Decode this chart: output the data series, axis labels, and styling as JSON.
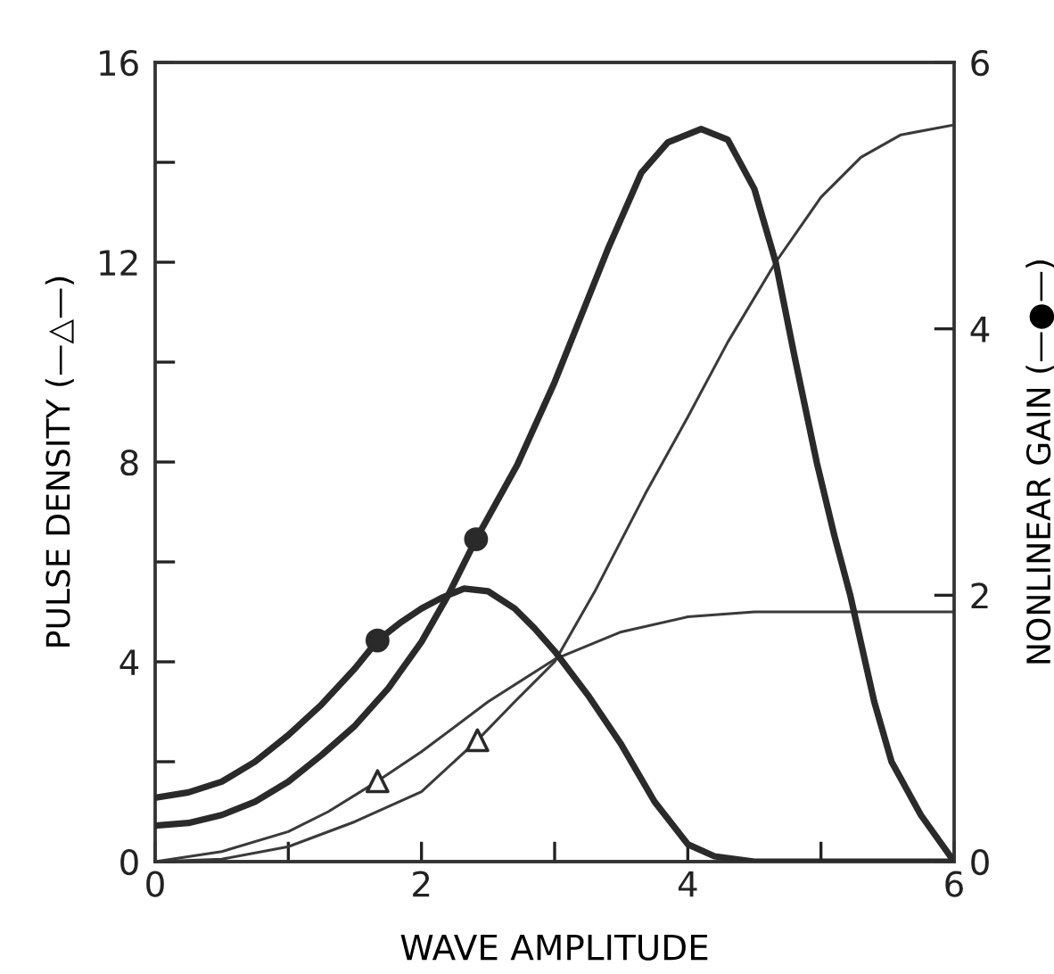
{
  "chart_data": {
    "type": "line",
    "xlabel": "WAVE AMPLITUDE",
    "ylabel": "PULSE DENSITY (—△—)",
    "y2label": "NONLINEAR GAIN (—●—)",
    "series": [
      {
        "axis": "y",
        "color": "#3a3a3a",
        "marker": "none",
        "x": [
          0,
          0.5,
          1,
          1.3,
          1.67,
          2,
          2.5,
          3,
          3.5,
          4,
          4.5,
          5,
          5.5,
          6
        ],
        "values": [
          0,
          0.2,
          0.6,
          1.0,
          1.61,
          2.2,
          3.2,
          4.05,
          4.6,
          4.9,
          5.0,
          5.0,
          5.0,
          5.0
        ]
      },
      {
        "axis": "y",
        "color": "#3a3a3a",
        "marker": "none",
        "x": [
          0,
          0.5,
          1,
          1.5,
          2,
          2.42,
          2.7,
          3,
          3.3,
          3.68,
          4,
          4.3,
          4.66,
          5,
          5.3,
          5.6,
          6
        ],
        "values": [
          0,
          0.05,
          0.3,
          0.8,
          1.4,
          2.43,
          3.2,
          4.0,
          5.4,
          7.36,
          8.9,
          10.4,
          12.0,
          13.3,
          14.1,
          14.55,
          14.75
        ]
      },
      {
        "axis": "y2",
        "color": "#2a2a2a",
        "marker": "none",
        "x": [
          0,
          0.25,
          0.5,
          0.75,
          1,
          1.25,
          1.5,
          1.67,
          1.85,
          2,
          2.15,
          2.32,
          2.5,
          2.7,
          2.85,
          3,
          3.25,
          3.5,
          3.75,
          4,
          4.2,
          4.5,
          6
        ],
        "values": [
          0.48,
          0.52,
          0.6,
          0.75,
          0.95,
          1.18,
          1.45,
          1.66,
          1.8,
          1.9,
          1.98,
          2.05,
          2.03,
          1.9,
          1.75,
          1.58,
          1.25,
          0.88,
          0.45,
          0.13,
          0.04,
          0,
          0
        ]
      },
      {
        "axis": "y2",
        "color": "#2a2a2a",
        "marker": "none",
        "x": [
          0,
          0.25,
          0.5,
          0.75,
          1,
          1.25,
          1.5,
          1.75,
          2,
          2.2,
          2.41,
          2.72,
          3,
          3.2,
          3.4,
          3.65,
          3.85,
          4.1,
          4.3,
          4.5,
          4.66,
          4.8,
          4.97,
          5.1,
          5.22,
          5.4,
          5.53,
          5.75,
          6
        ],
        "values": [
          0.27,
          0.29,
          0.35,
          0.45,
          0.6,
          0.8,
          1.02,
          1.3,
          1.65,
          2.0,
          2.42,
          2.98,
          3.6,
          4.1,
          4.6,
          5.17,
          5.4,
          5.5,
          5.42,
          5.05,
          4.5,
          3.8,
          2.99,
          2.45,
          2.0,
          1.2,
          0.75,
          0.35,
          0
        ]
      },
      {
        "type": "scatter",
        "axis": "y",
        "color": "#2a2a2a",
        "marker": "triangle",
        "x": [
          1.67,
          2.42
        ],
        "values": [
          1.61,
          2.43
        ]
      },
      {
        "type": "scatter",
        "axis": "y2",
        "color": "#2a2a2a",
        "marker": "circle",
        "x": [
          1.67,
          2.41
        ],
        "values": [
          1.66,
          2.42
        ]
      }
    ],
    "xlim": [
      0,
      6
    ],
    "xticks": [
      0,
      {
        "value": 1,
        "label": null
      },
      2,
      {
        "value": 3,
        "label": null
      },
      4,
      {
        "value": 5,
        "label": null
      },
      6
    ],
    "ylim": [
      0,
      16
    ],
    "yticks": [
      0,
      {
        "value": 2,
        "label": null
      },
      4,
      {
        "value": 6,
        "label": null
      },
      8,
      {
        "value": 10,
        "label": null
      },
      12,
      {
        "value": 14,
        "label": null
      },
      16
    ],
    "y2lim": [
      0,
      6
    ],
    "y2ticks": [
      0,
      2,
      4,
      6
    ],
    "grid": false,
    "legend": false
  }
}
